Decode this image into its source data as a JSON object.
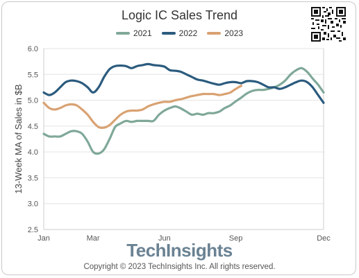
{
  "chart_data": {
    "type": "line",
    "title": "Logic IC Sales Trend",
    "ylabel": "13-Week MA of Sales in $B",
    "xlabel": "",
    "ylim": [
      2.5,
      6.0
    ],
    "yticks": [
      "2.5",
      "3.0",
      "3.5",
      "4.0",
      "4.5",
      "5.0",
      "5.5",
      "6.0"
    ],
    "xlim": [
      1,
      52
    ],
    "xticks": [
      {
        "label": "Jan",
        "week": 1
      },
      {
        "label": "Mar",
        "week": 10
      },
      {
        "label": "Jun",
        "week": 23
      },
      {
        "label": "Sep",
        "week": 36
      },
      {
        "label": "Dec",
        "week": 52
      }
    ],
    "legend_position": "top",
    "grid": "horizontal",
    "series": [
      {
        "name": "2021",
        "color": "#7fa898",
        "values": [
          4.35,
          4.3,
          4.3,
          4.3,
          4.35,
          4.4,
          4.4,
          4.35,
          4.2,
          4.0,
          3.97,
          4.05,
          4.25,
          4.48,
          4.55,
          4.6,
          4.58,
          4.6,
          4.6,
          4.6,
          4.6,
          4.72,
          4.8,
          4.85,
          4.88,
          4.84,
          4.78,
          4.72,
          4.74,
          4.72,
          4.75,
          4.75,
          4.78,
          4.85,
          4.9,
          4.98,
          5.05,
          5.13,
          5.18,
          5.2,
          5.2,
          5.22,
          5.25,
          5.3,
          5.38,
          5.5,
          5.58,
          5.62,
          5.55,
          5.42,
          5.3,
          5.15
        ]
      },
      {
        "name": "2022",
        "color": "#2b5b7e",
        "values": [
          5.15,
          5.1,
          5.15,
          5.25,
          5.35,
          5.38,
          5.37,
          5.33,
          5.25,
          5.15,
          5.25,
          5.45,
          5.6,
          5.66,
          5.67,
          5.66,
          5.62,
          5.66,
          5.68,
          5.7,
          5.68,
          5.67,
          5.65,
          5.58,
          5.57,
          5.55,
          5.5,
          5.45,
          5.4,
          5.38,
          5.35,
          5.32,
          5.3,
          5.33,
          5.35,
          5.35,
          5.33,
          5.37,
          5.37,
          5.35,
          5.3,
          5.25,
          5.25,
          5.22,
          5.25,
          5.3,
          5.35,
          5.38,
          5.35,
          5.25,
          5.1,
          4.95
        ]
      },
      {
        "name": "2023",
        "color": "#d9a272",
        "values": [
          4.95,
          4.85,
          4.82,
          4.85,
          4.9,
          4.92,
          4.9,
          4.82,
          4.72,
          4.58,
          4.48,
          4.47,
          4.52,
          4.62,
          4.72,
          4.78,
          4.8,
          4.8,
          4.82,
          4.88,
          4.92,
          4.95,
          4.97,
          4.97,
          5.0,
          5.02,
          5.05,
          5.08,
          5.1,
          5.12,
          5.12,
          5.12,
          5.1,
          5.12,
          5.15,
          5.22,
          5.28
        ]
      }
    ]
  },
  "legend": [
    "2021",
    "2022",
    "2023"
  ],
  "branding": {
    "logo": "TechInsights",
    "copyright": "Copyright © 2023 TechInsights Inc.  All rights reserved."
  },
  "icons": {
    "qr": "qr-code-icon"
  }
}
